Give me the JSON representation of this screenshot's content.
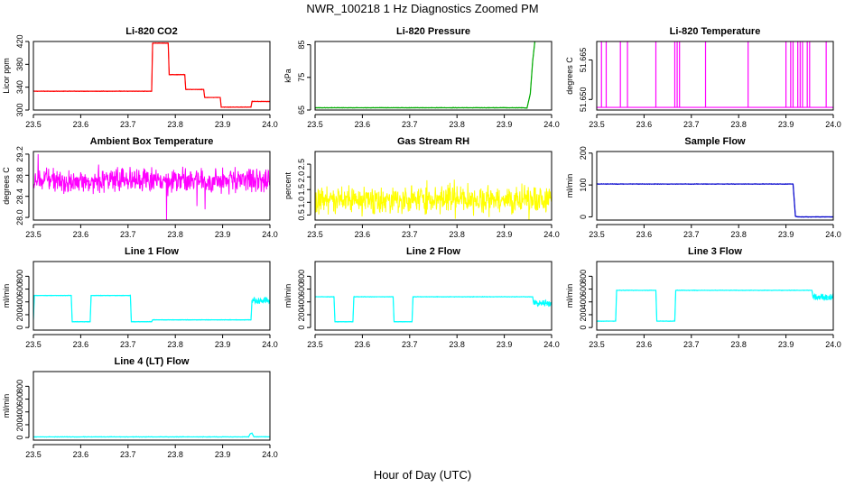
{
  "figure": {
    "title": "NWR_100218  1 Hz Diagnostics Zoomed PM",
    "xlabel": "Hour of Day (UTC)"
  },
  "chart_data": [
    {
      "type": "line",
      "title": "Li-820 CO2",
      "ylabel": "Licor ppm",
      "color": "#ff0000",
      "xlim": [
        23.5,
        24.0
      ],
      "ylim": [
        300,
        420
      ],
      "yticks": [
        300,
        340,
        380,
        420
      ],
      "ytick_labels": [
        "300",
        "340",
        "380",
        "420"
      ],
      "xticks": [
        23.5,
        23.6,
        23.7,
        23.8,
        23.9,
        24.0
      ],
      "series": [
        {
          "x": [
            23.5,
            23.75,
            23.752,
            23.785,
            23.787,
            23.82,
            23.822,
            23.86,
            23.862,
            23.895,
            23.897,
            23.96,
            23.962,
            24.0
          ],
          "y": [
            333,
            333,
            417,
            417,
            362,
            362,
            336,
            336,
            322,
            322,
            305,
            305,
            315,
            315
          ]
        }
      ]
    },
    {
      "type": "line",
      "title": "Li-820 Pressure",
      "ylabel": "kPa",
      "color": "#00aa00",
      "xlim": [
        23.5,
        24.0
      ],
      "ylim": [
        65,
        86
      ],
      "yticks": [
        65,
        75,
        85
      ],
      "ytick_labels": [
        "65",
        "75",
        "85"
      ],
      "xticks": [
        23.5,
        23.6,
        23.7,
        23.8,
        23.9,
        24.0
      ],
      "series": [
        {
          "x": [
            23.5,
            23.94,
            23.948,
            23.955,
            23.96,
            23.965,
            23.97,
            24.0
          ],
          "y": [
            65.7,
            65.7,
            65.6,
            70,
            80,
            86.5,
            86.8,
            86.8
          ]
        }
      ]
    },
    {
      "type": "line",
      "title": "Li-820 Temperature",
      "ylabel": "degrees C",
      "color": "#ff00ff",
      "xlim": [
        23.5,
        24.0
      ],
      "ylim": [
        51.646,
        51.672
      ],
      "yticks": [
        51.65,
        51.665
      ],
      "ytick_labels": [
        "51.650",
        "51.665"
      ],
      "xticks": [
        23.5,
        23.6,
        23.7,
        23.8,
        23.9,
        24.0
      ],
      "baseline": 51.647,
      "spike_value": 51.672,
      "spikes_x": [
        23.51,
        23.52,
        23.55,
        23.565,
        23.625,
        23.665,
        23.67,
        23.675,
        23.73,
        23.82,
        23.9,
        23.91,
        23.915,
        23.925,
        23.93,
        23.935,
        23.945,
        23.95,
        23.985
      ]
    },
    {
      "type": "line",
      "title": "Ambient Box Temperature",
      "ylabel": "degrees C",
      "color": "#ff00ff",
      "xlim": [
        23.5,
        24.0
      ],
      "ylim": [
        27.95,
        29.25
      ],
      "yticks": [
        28.0,
        28.4,
        28.8,
        29.2
      ],
      "ytick_labels": [
        "28.0",
        "28.4",
        "28.8",
        "29.2"
      ],
      "xticks": [
        23.5,
        23.6,
        23.7,
        23.8,
        23.9,
        24.0
      ],
      "noise": {
        "center": 28.7,
        "spread": 0.11,
        "min": 27.95,
        "max": 29.2
      }
    },
    {
      "type": "line",
      "title": "Gas Stream RH",
      "ylabel": "percent",
      "color": "#ffff00",
      "xlim": [
        23.5,
        24.0
      ],
      "ylim": [
        0.3,
        3.0
      ],
      "yticks": [
        0.5,
        1.0,
        1.5,
        2.0,
        2.5
      ],
      "ytick_labels": [
        "0.5",
        "1.0",
        "1.5",
        "2.0",
        "2.5"
      ],
      "xticks": [
        23.5,
        23.6,
        23.7,
        23.8,
        23.9,
        24.0
      ],
      "noise": {
        "center": 1.1,
        "spread": 0.25,
        "min": 0.3,
        "max": 2.9
      }
    },
    {
      "type": "line",
      "title": "Sample Flow",
      "ylabel": "ml/min",
      "color": "#0000cc",
      "xlim": [
        23.5,
        24.0
      ],
      "ylim": [
        -10,
        205
      ],
      "yticks": [
        0,
        100,
        200
      ],
      "ytick_labels": [
        "0",
        "100",
        "200"
      ],
      "xticks": [
        23.5,
        23.6,
        23.7,
        23.8,
        23.9,
        24.0
      ],
      "series": [
        {
          "x": [
            23.5,
            23.915,
            23.92,
            23.925,
            24.0
          ],
          "y": [
            103,
            103,
            2,
            0,
            0
          ]
        }
      ]
    },
    {
      "type": "line",
      "title": "Line 1 Flow",
      "ylabel": "ml/min",
      "color": "#00ffff",
      "xlim": [
        23.5,
        24.0
      ],
      "ylim": [
        -40,
        1030
      ],
      "yticks": [
        0,
        200,
        400,
        600,
        800
      ],
      "ytick_labels": [
        "0",
        "200",
        "400",
        "600",
        "800"
      ],
      "xticks": [
        23.5,
        23.6,
        23.7,
        23.8,
        23.9,
        24.0
      ],
      "series": [
        {
          "x": [
            23.5,
            23.502,
            23.58,
            23.582,
            23.62,
            23.622,
            23.705,
            23.707,
            23.75,
            23.752,
            23.96,
            23.962,
            24.0
          ],
          "y": [
            120,
            500,
            500,
            90,
            90,
            500,
            500,
            90,
            90,
            120,
            120,
            420,
            420
          ]
        }
      ]
    },
    {
      "type": "line",
      "title": "Line 2 Flow",
      "ylabel": "ml/min",
      "color": "#00ffff",
      "xlim": [
        23.5,
        24.0
      ],
      "ylim": [
        -40,
        1030
      ],
      "yticks": [
        0,
        200,
        400,
        600,
        800
      ],
      "ytick_labels": [
        "0",
        "200",
        "400",
        "600",
        "800"
      ],
      "xticks": [
        23.5,
        23.6,
        23.7,
        23.8,
        23.9,
        24.0
      ],
      "series": [
        {
          "x": [
            23.5,
            23.54,
            23.542,
            23.58,
            23.582,
            23.665,
            23.667,
            23.705,
            23.707,
            23.96,
            23.962,
            24.0
          ],
          "y": [
            480,
            480,
            90,
            90,
            480,
            480,
            90,
            90,
            480,
            480,
            380,
            380
          ]
        }
      ]
    },
    {
      "type": "line",
      "title": "Line 3 Flow",
      "ylabel": "ml/min",
      "color": "#00ffff",
      "xlim": [
        23.5,
        24.0
      ],
      "ylim": [
        -40,
        1030
      ],
      "yticks": [
        0,
        200,
        400,
        600,
        800
      ],
      "ytick_labels": [
        "0",
        "200",
        "400",
        "600",
        "800"
      ],
      "xticks": [
        23.5,
        23.6,
        23.7,
        23.8,
        23.9,
        24.0
      ],
      "series": [
        {
          "x": [
            23.5,
            23.502,
            23.54,
            23.542,
            23.625,
            23.627,
            23.665,
            23.667,
            23.955,
            23.957,
            24.0
          ],
          "y": [
            100,
            100,
            100,
            580,
            580,
            100,
            100,
            580,
            580,
            480,
            480
          ]
        }
      ]
    },
    {
      "type": "line",
      "title": "Line 4 (LT) Flow",
      "ylabel": "ml/min",
      "color": "#00ffff",
      "xlim": [
        23.5,
        24.0
      ],
      "ylim": [
        -40,
        1030
      ],
      "yticks": [
        0,
        200,
        400,
        600,
        800
      ],
      "ytick_labels": [
        "0",
        "200",
        "400",
        "600",
        "800"
      ],
      "xticks": [
        23.5,
        23.6,
        23.7,
        23.8,
        23.9,
        24.0
      ],
      "series": [
        {
          "x": [
            23.5,
            23.955,
            23.958,
            23.962,
            23.966,
            24.0
          ],
          "y": [
            10,
            10,
            55,
            70,
            12,
            12
          ]
        }
      ]
    }
  ]
}
